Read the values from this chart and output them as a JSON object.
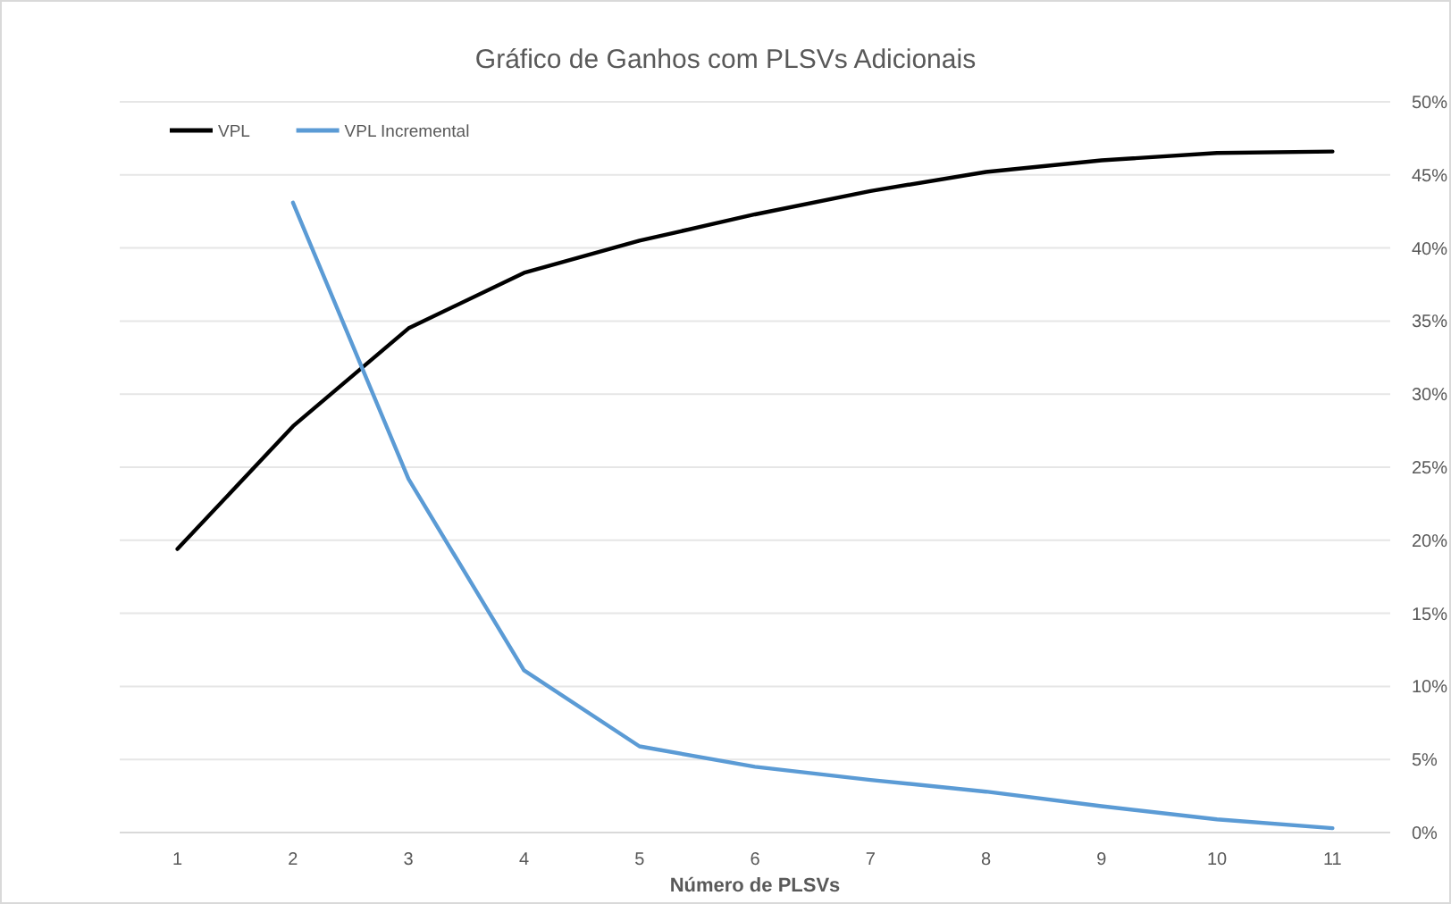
{
  "chart_data": {
    "type": "line",
    "title": "Gráfico de Ganhos com PLSVs Adicionais",
    "xlabel": "Número de PLSVs",
    "categories": [
      "1",
      "2",
      "3",
      "4",
      "5",
      "6",
      "7",
      "8",
      "9",
      "10",
      "11"
    ],
    "series": [
      {
        "name": "VPL",
        "color": "#000000",
        "values": [
          19.4,
          27.8,
          34.5,
          38.3,
          40.5,
          42.3,
          43.9,
          45.2,
          46.0,
          46.5,
          46.6
        ]
      },
      {
        "name": "VPL Incremental",
        "color": "#5b9bd5",
        "values": [
          null,
          43.1,
          24.2,
          11.1,
          5.9,
          4.5,
          3.6,
          2.8,
          1.8,
          0.9,
          0.3
        ]
      }
    ],
    "ylim": [
      0,
      50
    ],
    "yticks": [
      {
        "value": 0,
        "label": "0%"
      },
      {
        "value": 5,
        "label": "5%"
      },
      {
        "value": 10,
        "label": "10%"
      },
      {
        "value": 15,
        "label": "15%"
      },
      {
        "value": 20,
        "label": "20%"
      },
      {
        "value": 25,
        "label": "25%"
      },
      {
        "value": 30,
        "label": "30%"
      },
      {
        "value": 35,
        "label": "35%"
      },
      {
        "value": 40,
        "label": "40%"
      },
      {
        "value": 45,
        "label": "45%"
      },
      {
        "value": 50,
        "label": "50%"
      }
    ],
    "grid": "y",
    "legend": "top left",
    "marker": "none",
    "line_style": "solid"
  }
}
